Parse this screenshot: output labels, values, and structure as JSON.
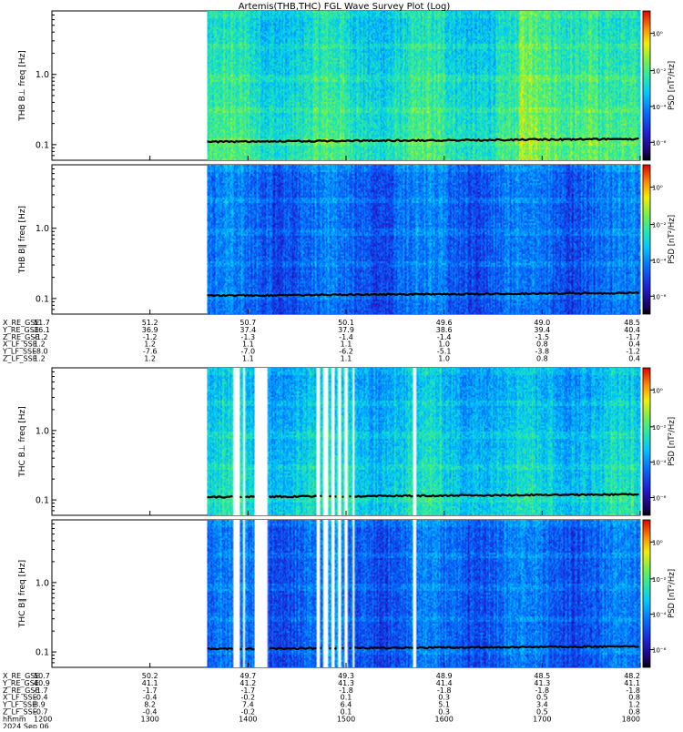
{
  "title": "Artemis(THB,THC) FGL Wave Survey Plot (Log)",
  "colorbar": {
    "label": "PSD [nT²/Hz]",
    "ticks": [
      "10⁰",
      "10⁻²",
      "10⁻⁴",
      "10⁻⁶"
    ]
  },
  "chart_data": [
    {
      "type": "heatmap",
      "probe": "THB",
      "ylabel": "THB B⊥ freq [Hz]",
      "yscale": "log",
      "yticks": [
        0.1,
        1.0
      ],
      "yrange": [
        0.06,
        8.0
      ],
      "data_start_hhmm": 1335,
      "gaps": [],
      "intensity": "medium-high",
      "line_value_hz": 0.11
    },
    {
      "type": "heatmap",
      "probe": "THB",
      "ylabel": "THB B∥ freq [Hz]",
      "yscale": "log",
      "yticks": [
        0.1,
        1.0
      ],
      "yrange": [
        0.06,
        8.0
      ],
      "data_start_hhmm": 1335,
      "gaps": [],
      "intensity": "low",
      "line_value_hz": 0.11
    },
    {
      "type": "heatmap",
      "probe": "THC",
      "ylabel": "THC B⊥ freq [Hz]",
      "yscale": "log",
      "yticks": [
        0.1,
        1.0
      ],
      "yrange": [
        0.06,
        8.0
      ],
      "data_start_hhmm": 1335,
      "gaps": [
        [
          1351,
          1355
        ],
        [
          1357,
          1358
        ],
        [
          1364,
          1372
        ],
        [
          1442,
          1444
        ],
        [
          1446,
          1449
        ],
        [
          1451,
          1453
        ],
        [
          1455,
          1457
        ],
        [
          1459,
          1461
        ],
        [
          1504,
          1505
        ],
        [
          1541,
          1543
        ]
      ],
      "intensity": "medium",
      "line_value_hz": 0.11
    },
    {
      "type": "heatmap",
      "probe": "THC",
      "ylabel": "THC B∥ freq [Hz]",
      "yscale": "log",
      "yticks": [
        0.1,
        1.0
      ],
      "yrange": [
        0.06,
        8.0
      ],
      "data_start_hhmm": 1335,
      "gaps": [
        [
          1351,
          1355
        ],
        [
          1357,
          1358
        ],
        [
          1364,
          1372
        ],
        [
          1442,
          1444
        ],
        [
          1446,
          1449
        ],
        [
          1451,
          1453
        ],
        [
          1455,
          1457
        ],
        [
          1459,
          1461
        ],
        [
          1504,
          1505
        ],
        [
          1541,
          1543
        ]
      ],
      "intensity": "low",
      "line_value_hz": 0.11
    }
  ],
  "ephem_thb": {
    "labels": [
      "X_RE_GSE",
      "Y_RE_GSE",
      "Z_RE_GSE",
      "X_LF_SSE",
      "Y_LF_SSE",
      "Z_LF_SSE"
    ],
    "columns": [
      [
        "51.7",
        "36.1",
        "-1.2",
        "1.2",
        "-8.0",
        "1.2"
      ],
      [
        "51.2",
        "36.9",
        "-1.2",
        "1.2",
        "-7.6",
        "1.2"
      ],
      [
        "50.7",
        "37.4",
        "-1.3",
        "1.1",
        "-7.0",
        "1.1"
      ],
      [
        "50.1",
        "37.9",
        "-1.4",
        "1.1",
        "-6.2",
        "1.1"
      ],
      [
        "49.6",
        "38.6",
        "-1.4",
        "1.0",
        "-5.1",
        "1.0"
      ],
      [
        "49.0",
        "39.4",
        "-1.5",
        "0.8",
        "-3.8",
        "0.8"
      ],
      [
        "48.5",
        "40.4",
        "-1.7",
        "0.4",
        "-1.2",
        "0.4"
      ]
    ]
  },
  "ephem_thc": {
    "labels": [
      "X_RE_GSE",
      "Y_RE_GSE",
      "Z_RE_GSE",
      "X_LF_SSE",
      "Y_LF_SSE",
      "Z_LF_SSE"
    ],
    "columns": [
      [
        "50.7",
        "40.9",
        "-1.7",
        "-0.4",
        "8.9",
        "-0.7"
      ],
      [
        "50.2",
        "41.1",
        "-1.7",
        "-0.4",
        "8.2",
        "-0.4"
      ],
      [
        "49.7",
        "41.2",
        "-1.7",
        "-0.2",
        "7.4",
        "-0.2"
      ],
      [
        "49.3",
        "41.3",
        "-1.8",
        "0.1",
        "6.4",
        "0.1"
      ],
      [
        "48.9",
        "41.4",
        "-1.8",
        "0.3",
        "5.1",
        "0.3"
      ],
      [
        "48.5",
        "41.3",
        "-1.8",
        "0.5",
        "3.4",
        "0.5"
      ],
      [
        "48.2",
        "41.1",
        "-1.8",
        "0.8",
        "1.2",
        "0.8"
      ]
    ]
  },
  "time_axis": {
    "hhmm_label": "hhmm",
    "date_label": "2024 Sep 06",
    "ticks": [
      "1200",
      "1300",
      "1400",
      "1500",
      "1600",
      "1700",
      "1800"
    ],
    "start": 1200,
    "end": 1800
  }
}
